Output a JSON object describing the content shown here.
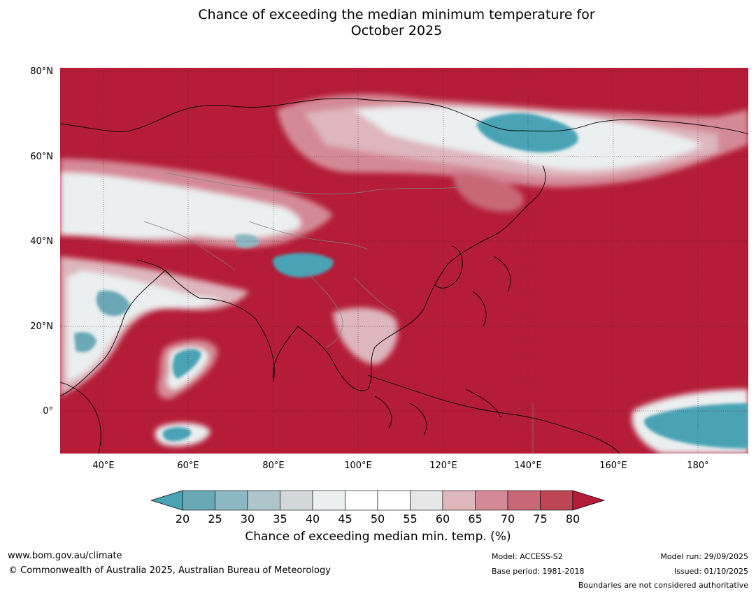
{
  "title": {
    "line1": "Chance of exceeding the median minimum temperature for",
    "line2": "October 2025"
  },
  "map": {
    "ocean_color": "#b41c37",
    "lat_labels": [
      "80°N",
      "60°N",
      "40°N",
      "20°N",
      "0°"
    ],
    "lon_labels": [
      "40°E",
      "60°E",
      "80°E",
      "100°E",
      "120°E",
      "140°E",
      "160°E",
      "180°"
    ]
  },
  "colorbar": {
    "ticks": [
      "20",
      "25",
      "30",
      "35",
      "40",
      "45",
      "50",
      "55",
      "60",
      "65",
      "70",
      "75",
      "80"
    ],
    "colors": [
      "#4aa3b5",
      "#6aa8b6",
      "#8bb8c3",
      "#adc5cb",
      "#d2d8da",
      "#ebeff0",
      "#ffffff",
      "#ffffff",
      "#e6e6e6",
      "#deb6bd",
      "#d48a96",
      "#c86777",
      "#be4553",
      "#b41c37"
    ],
    "label": "Chance of exceeding median min. temp. (%)"
  },
  "footer": {
    "url": "www.bom.gov.au/climate",
    "copyright": "© Commonwealth of Australia 2025, Australian Bureau of Meteorology",
    "model": "Model: ACCESS-S2",
    "base_period": "Base period: 1981-2018",
    "model_run": "Model run: 29/09/2025",
    "issued": "Issued: 01/10/2025",
    "disclaimer": "Boundaries are not considered authoritative"
  }
}
